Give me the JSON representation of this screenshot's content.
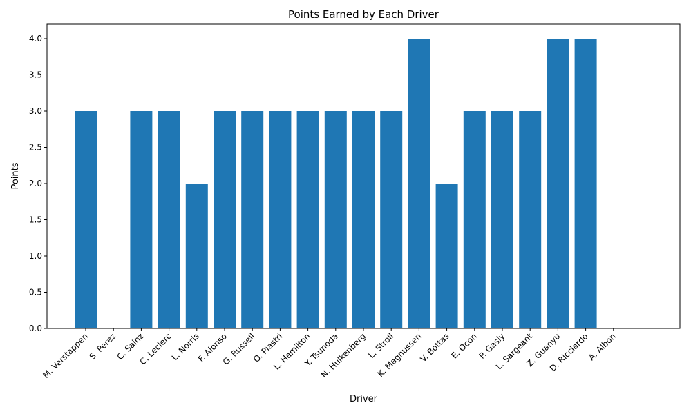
{
  "chart_data": {
    "type": "bar",
    "title": "Points Earned by Each Driver",
    "xlabel": "Driver",
    "ylabel": "Points",
    "ylim": [
      0,
      4.2
    ],
    "yticks": [
      0.0,
      0.5,
      1.0,
      1.5,
      2.0,
      2.5,
      3.0,
      3.5,
      4.0
    ],
    "grid": false,
    "bar_color": "#1f77b4",
    "categories": [
      "M. Verstappen",
      "S. Perez",
      "C. Sainz",
      "C. Leclerc",
      "L. Norris",
      "F. Alonso",
      "G. Russell",
      "O. Piastri",
      "L. Hamilton",
      "Y. Tsunoda",
      "N. Hulkenberg",
      "L. Stroll",
      "K. Magnussen",
      "V. Bottas",
      "E. Ocon",
      "P. Gasly",
      "L. Sargeant",
      "Z. Guanyu",
      "D. Ricciardo",
      "A. Albon"
    ],
    "values": [
      3,
      0,
      3,
      3,
      2,
      3,
      3,
      3,
      3,
      3,
      3,
      3,
      4,
      2,
      3,
      3,
      3,
      4,
      4,
      0
    ]
  }
}
